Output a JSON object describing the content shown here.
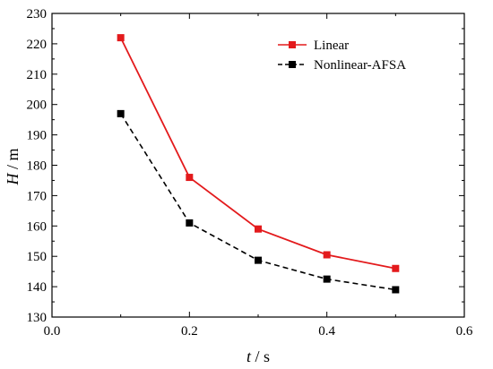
{
  "chart_data": {
    "type": "line",
    "title": "",
    "xlabel": {
      "var": "t",
      "sep": " / ",
      "unit": "s"
    },
    "ylabel": {
      "var": "H",
      "sep": " / ",
      "unit": "m"
    },
    "xlim": [
      0.0,
      0.6
    ],
    "ylim": [
      130,
      230
    ],
    "xticks": [
      "0.0",
      "0.2",
      "0.4",
      "0.6"
    ],
    "yticks": [
      "130",
      "140",
      "150",
      "160",
      "170",
      "180",
      "190",
      "200",
      "210",
      "220",
      "230"
    ],
    "grid": false,
    "legend_position": "top-right",
    "x": [
      0.1,
      0.2,
      0.3,
      0.4,
      0.5
    ],
    "series": [
      {
        "name": "Linear",
        "values": [
          222,
          176,
          159,
          150.5,
          146
        ],
        "color": "#e31a1c",
        "line": "solid",
        "marker": "square"
      },
      {
        "name": "Nonlinear-AFSA",
        "values": [
          197,
          161,
          148.7,
          142.5,
          139
        ],
        "color": "#000000",
        "line": "dashed",
        "marker": "square"
      }
    ]
  }
}
